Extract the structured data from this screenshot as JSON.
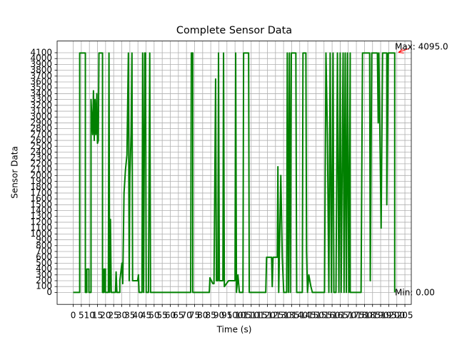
{
  "chart_data": {
    "type": "line",
    "title": "Complete Sensor Data",
    "xlabel": "Time (s)",
    "ylabel": "Sensor Data",
    "grid": true,
    "xlim": [
      -9.95,
      208.95
    ],
    "ylim": [
      -204.75,
      4299.75
    ],
    "xticks": [
      0,
      5,
      10,
      15,
      20,
      25,
      30,
      35,
      40,
      45,
      50,
      55,
      60,
      65,
      70,
      75,
      80,
      85,
      90,
      95,
      100,
      105,
      110,
      115,
      120,
      125,
      130,
      135,
      140,
      145,
      150,
      155,
      160,
      165,
      170,
      175,
      180,
      185,
      190,
      195,
      200,
      205
    ],
    "yticks": [
      0,
      100,
      200,
      300,
      400,
      500,
      600,
      700,
      800,
      900,
      1000,
      1100,
      1200,
      1300,
      1400,
      1500,
      1600,
      1700,
      1800,
      1900,
      2000,
      2100,
      2200,
      2300,
      2400,
      2500,
      2600,
      2700,
      2800,
      2900,
      3000,
      3100,
      3200,
      3300,
      3400,
      3500,
      3600,
      3700,
      3800,
      3900,
      4000,
      4100
    ],
    "x": [
      0,
      4,
      4,
      7.5,
      7.5,
      8.4,
      8.4,
      9.7,
      9.7,
      11,
      11,
      12,
      12.5,
      13,
      13.5,
      14,
      14.6,
      15,
      15.5,
      15.9,
      18.1,
      18.1,
      19,
      19,
      19.9,
      19.9,
      21.7,
      22.1,
      22.5,
      23,
      23.5,
      26.1,
      26.5,
      27,
      28.8,
      28.8,
      30.1,
      30.6,
      31.4,
      32.3,
      33.2,
      34.1,
      34.6,
      35,
      35.8,
      36.3,
      36.7,
      39.8,
      40.3,
      40.7,
      42.5,
      42.9,
      43.5,
      44.2,
      44.7,
      45.1,
      46.5,
      47.3,
      47.8,
      72.6,
      73,
      73.9,
      73.9,
      84.1,
      84.5,
      86.3,
      87,
      88,
      88.5,
      89.4,
      89.8,
      90.3,
      92.5,
      92.9,
      93.4,
      96,
      100,
      100.4,
      100.9,
      101.8,
      102.7,
      104.9,
      105.3,
      108.4,
      108.8,
      119,
      119.5,
      122.6,
      123,
      123.5,
      126.1,
      126.5,
      127,
      128.3,
      129.2,
      130.1,
      131.9,
      132.3,
      133,
      133.6,
      134.2,
      134.8,
      137.6,
      138.1,
      141.6,
      142,
      143.8,
      144.2,
      144.8,
      145.6,
      146.9,
      147.8,
      155.3,
      156.2,
      157.1,
      158,
      158.8,
      159.6,
      160.6,
      161.1,
      162.4,
      163.3,
      164.2,
      165,
      165.6,
      166.8,
      167.4,
      168.1,
      168.8,
      169.5,
      170.3,
      171.2,
      171.2,
      177.9,
      178.8,
      183.2,
      183.6,
      184.5,
      188,
      188.5,
      188.9,
      190.3,
      191.2,
      193.8,
      193.8,
      194.7,
      198.7,
      198.7
    ],
    "series": [
      {
        "color": "#008000",
        "values": [
          0,
          0,
          4095,
          4095,
          0,
          0,
          400,
          400,
          0,
          0,
          3300,
          2700,
          3450,
          2600,
          3300,
          2700,
          3400,
          2550,
          2600,
          4095,
          4095,
          0,
          0,
          400,
          400,
          0,
          0,
          4095,
          0,
          1250,
          0,
          0,
          350,
          0,
          0,
          200,
          500,
          150,
          1700,
          2100,
          2350,
          4095,
          200,
          2000,
          2700,
          4095,
          200,
          200,
          300,
          0,
          0,
          4095,
          0,
          4095,
          4095,
          0,
          0,
          4095,
          0,
          0,
          4095,
          4095,
          0,
          0,
          250,
          150,
          150,
          3650,
          200,
          200,
          4095,
          200,
          200,
          4095,
          100,
          200,
          200,
          4095,
          0,
          300,
          0,
          0,
          4095,
          4095,
          0,
          0,
          600,
          600,
          100,
          600,
          600,
          2150,
          0,
          2000,
          600,
          0,
          0,
          4095,
          0,
          4095,
          0,
          4095,
          4095,
          0,
          0,
          4095,
          4095,
          700,
          0,
          300,
          100,
          0,
          0,
          4095,
          2700,
          0,
          4095,
          0,
          4095,
          0,
          0,
          4095,
          0,
          4095,
          0,
          4095,
          0,
          4095,
          0,
          4095,
          0,
          4095,
          0,
          0,
          4095,
          4095,
          200,
          4095,
          4095,
          2900,
          4095,
          1100,
          4095,
          4095,
          1500,
          4095,
          4095,
          0
        ]
      }
    ],
    "annotations": [
      {
        "text": "Max: 4095.0",
        "color": "#ff0000"
      },
      {
        "text": "Min: 0.00",
        "color": "#008000"
      }
    ]
  }
}
